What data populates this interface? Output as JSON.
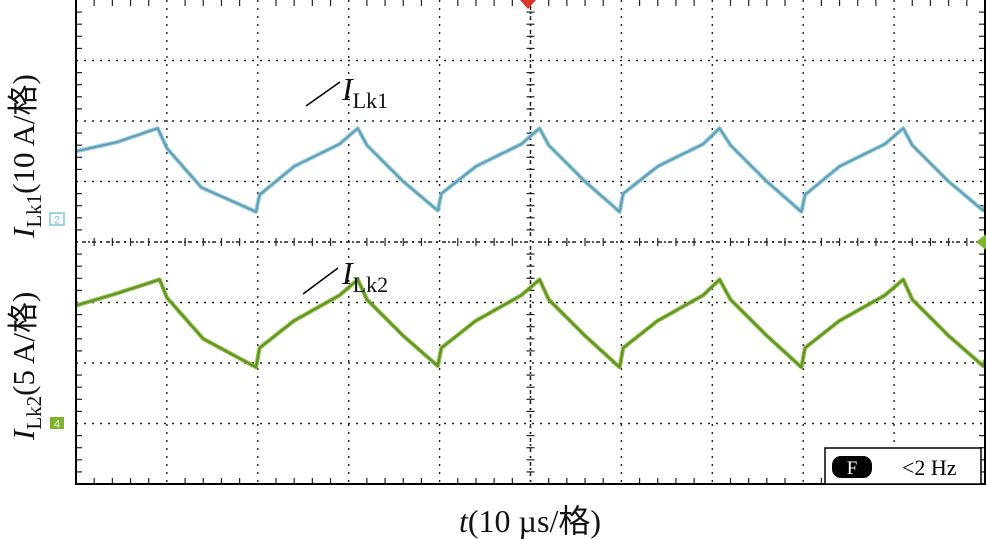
{
  "chart_data": {
    "type": "line",
    "x_label_var": "t",
    "x_label_rest": "(10 µs/格)",
    "y_label_top_var": "I",
    "y_label_top_sub": "Lk1",
    "y_label_top_rest": "(10 A/格)",
    "y_label_bottom_var": "I",
    "y_label_bottom_sub": "Lk2",
    "y_label_bottom_rest": "(5 A/格)",
    "grid": true,
    "divisions": {
      "x": 10,
      "y": 8
    },
    "x_range_div": [
      0,
      10
    ],
    "series": [
      {
        "name": "ILk1",
        "label_var": "I",
        "label_sub": "Lk1",
        "channel": "2",
        "color": "#7fc4dc",
        "points_div": [
          [
            0.0,
            5.5
          ],
          [
            0.45,
            5.65
          ],
          [
            0.9,
            5.88
          ],
          [
            1.0,
            5.55
          ],
          [
            1.38,
            4.9
          ],
          [
            1.98,
            4.5
          ],
          [
            2.02,
            4.78
          ],
          [
            2.4,
            5.25
          ],
          [
            2.9,
            5.62
          ],
          [
            3.1,
            5.88
          ],
          [
            3.2,
            5.6
          ],
          [
            3.6,
            5.0
          ],
          [
            3.98,
            4.52
          ],
          [
            4.02,
            4.8
          ],
          [
            4.4,
            5.25
          ],
          [
            4.9,
            5.62
          ],
          [
            5.1,
            5.88
          ],
          [
            5.2,
            5.6
          ],
          [
            5.6,
            5.0
          ],
          [
            5.98,
            4.5
          ],
          [
            6.02,
            4.8
          ],
          [
            6.4,
            5.25
          ],
          [
            6.9,
            5.62
          ],
          [
            7.08,
            5.88
          ],
          [
            7.2,
            5.6
          ],
          [
            7.6,
            5.0
          ],
          [
            7.98,
            4.5
          ],
          [
            8.02,
            4.78
          ],
          [
            8.4,
            5.25
          ],
          [
            8.9,
            5.62
          ],
          [
            9.1,
            5.88
          ],
          [
            9.2,
            5.6
          ],
          [
            9.6,
            5.0
          ],
          [
            9.98,
            4.52
          ],
          [
            10.0,
            4.6
          ]
        ]
      },
      {
        "name": "ILk2",
        "label_var": "I",
        "label_sub": "Lk2",
        "channel": "4",
        "color": "#7bb52c",
        "points_div": [
          [
            0.0,
            2.95
          ],
          [
            0.45,
            3.15
          ],
          [
            0.92,
            3.38
          ],
          [
            1.0,
            3.08
          ],
          [
            1.4,
            2.4
          ],
          [
            1.98,
            1.93
          ],
          [
            2.02,
            2.25
          ],
          [
            2.4,
            2.7
          ],
          [
            2.9,
            3.12
          ],
          [
            3.1,
            3.38
          ],
          [
            3.2,
            3.05
          ],
          [
            3.6,
            2.45
          ],
          [
            3.98,
            1.95
          ],
          [
            4.02,
            2.25
          ],
          [
            4.4,
            2.7
          ],
          [
            4.9,
            3.12
          ],
          [
            5.1,
            3.38
          ],
          [
            5.2,
            3.05
          ],
          [
            5.6,
            2.45
          ],
          [
            5.98,
            1.93
          ],
          [
            6.02,
            2.25
          ],
          [
            6.4,
            2.7
          ],
          [
            6.9,
            3.12
          ],
          [
            7.08,
            3.38
          ],
          [
            7.2,
            3.05
          ],
          [
            7.6,
            2.45
          ],
          [
            7.98,
            1.93
          ],
          [
            8.02,
            2.25
          ],
          [
            8.4,
            2.7
          ],
          [
            8.9,
            3.12
          ],
          [
            9.1,
            3.38
          ],
          [
            9.2,
            3.05
          ],
          [
            9.6,
            2.45
          ],
          [
            9.98,
            1.95
          ],
          [
            10.0,
            2.05
          ]
        ]
      }
    ]
  },
  "status": {
    "filter_badge": "F",
    "filter_text": "<2 Hz"
  },
  "colors": {
    "frame": "#000000",
    "grid": "#222222",
    "trigger_marker": "#d9372c"
  }
}
